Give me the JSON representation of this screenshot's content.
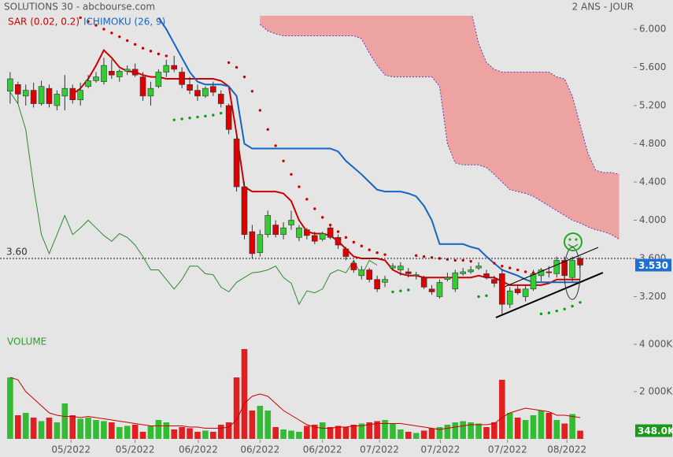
{
  "header": {
    "title": "SOLUTIONS 30 - abcbourse.com",
    "period": "2 ANS - JOUR"
  },
  "chart_data": [
    {
      "type": "candlestick",
      "up_color": "#33cc33",
      "down_color": "#dd0000",
      "xlim": [
        -1.3,
        79.85
      ],
      "ylim": [
        2.8,
        6.14
      ],
      "yticks": [
        {
          "value": 6.0,
          "label": "6.000"
        },
        {
          "value": 5.6,
          "label": "5.600"
        },
        {
          "value": 5.2,
          "label": "5.200"
        },
        {
          "value": 4.8,
          "label": "4.800"
        },
        {
          "value": 4.4,
          "label": "4.400"
        },
        {
          "value": 4.0,
          "label": "4.000"
        },
        {
          "value": 3.6,
          "label": "3.600"
        },
        {
          "value": 3.2,
          "label": "3.200"
        }
      ],
      "open": [
        5.35,
        5.42,
        5.3,
        5.36,
        5.22,
        5.38,
        5.2,
        5.3,
        5.38,
        5.26,
        5.4,
        5.46,
        5.45,
        5.56,
        5.5,
        5.56,
        5.58,
        5.5,
        5.3,
        5.4,
        5.55,
        5.62,
        5.55,
        5.42,
        5.36,
        5.3,
        5.4,
        5.32,
        5.2,
        4.85,
        4.35,
        3.88,
        3.66,
        3.85,
        3.95,
        3.85,
        3.95,
        3.82,
        3.9,
        3.84,
        3.8,
        3.92,
        3.82,
        3.7,
        3.55,
        3.42,
        3.48,
        3.38,
        3.35,
        3.5,
        3.48,
        3.46,
        3.42,
        3.4,
        3.28,
        3.2,
        3.38,
        3.28,
        3.44,
        3.46,
        3.5,
        3.44,
        3.38,
        3.44,
        3.12,
        3.28,
        3.2,
        3.28,
        3.42,
        3.46,
        3.44,
        3.58,
        3.4,
        3.6
      ],
      "high": [
        5.55,
        5.45,
        5.42,
        5.44,
        5.46,
        5.42,
        5.36,
        5.52,
        5.42,
        5.44,
        5.52,
        5.55,
        5.7,
        5.68,
        5.58,
        5.62,
        5.64,
        5.55,
        5.45,
        5.58,
        5.68,
        5.72,
        5.6,
        5.5,
        5.42,
        5.4,
        5.45,
        5.36,
        5.22,
        4.88,
        4.4,
        3.95,
        3.9,
        4.1,
        4.0,
        3.98,
        4.1,
        3.95,
        3.92,
        3.88,
        3.88,
        3.95,
        3.85,
        3.72,
        3.58,
        3.52,
        3.5,
        3.42,
        3.42,
        3.55,
        3.56,
        3.5,
        3.46,
        3.42,
        3.32,
        3.38,
        3.45,
        3.48,
        3.5,
        3.52,
        3.56,
        3.48,
        3.42,
        3.48,
        3.3,
        3.32,
        3.32,
        3.48,
        3.5,
        3.52,
        3.62,
        3.62,
        3.62,
        3.62
      ],
      "low": [
        5.22,
        5.22,
        5.2,
        5.18,
        5.2,
        5.18,
        5.15,
        5.15,
        5.22,
        5.2,
        5.38,
        5.44,
        5.42,
        5.48,
        5.45,
        5.52,
        5.5,
        5.25,
        5.2,
        5.38,
        5.5,
        5.55,
        5.38,
        5.32,
        5.25,
        5.28,
        5.3,
        5.18,
        4.9,
        4.3,
        3.8,
        3.6,
        3.62,
        3.82,
        3.82,
        3.8,
        3.9,
        3.78,
        3.8,
        3.75,
        3.78,
        3.8,
        3.7,
        3.58,
        3.45,
        3.38,
        3.35,
        3.25,
        3.3,
        3.48,
        3.42,
        3.4,
        3.38,
        3.28,
        3.22,
        3.18,
        3.36,
        3.25,
        3.42,
        3.44,
        3.48,
        3.38,
        3.3,
        3.0,
        3.08,
        3.22,
        3.15,
        3.26,
        3.36,
        3.4,
        3.4,
        3.38,
        3.36,
        3.5
      ],
      "close": [
        5.48,
        5.32,
        5.36,
        5.22,
        5.4,
        5.22,
        5.32,
        5.38,
        5.26,
        5.36,
        5.46,
        5.5,
        5.62,
        5.52,
        5.56,
        5.58,
        5.52,
        5.3,
        5.38,
        5.55,
        5.62,
        5.58,
        5.42,
        5.36,
        5.3,
        5.38,
        5.34,
        5.22,
        4.95,
        4.35,
        3.85,
        3.65,
        3.85,
        4.05,
        3.85,
        3.92,
        4.0,
        3.92,
        3.84,
        3.78,
        3.86,
        3.82,
        3.74,
        3.62,
        3.48,
        3.48,
        3.38,
        3.28,
        3.38,
        3.52,
        3.52,
        3.44,
        3.43,
        3.3,
        3.25,
        3.35,
        3.4,
        3.45,
        3.46,
        3.48,
        3.52,
        3.4,
        3.34,
        3.12,
        3.26,
        3.24,
        3.28,
        3.44,
        3.48,
        3.45,
        3.58,
        3.42,
        3.58,
        3.53
      ],
      "reference_line": {
        "value": 3.6,
        "label": "3.60"
      },
      "last_value": {
        "value": 3.53,
        "label": "3.530",
        "color": "#1f6fd1"
      },
      "indicators": [
        {
          "name": "SAR (0.02, 0.2)",
          "color": "#cc0000",
          "below_color": "#119911",
          "values": [
            null,
            null,
            null,
            null,
            null,
            null,
            null,
            null,
            null,
            6.12,
            6.08,
            6.04,
            6.0,
            5.96,
            5.92,
            5.88,
            5.84,
            5.8,
            5.77,
            5.74,
            5.72,
            5.05,
            5.06,
            5.07,
            5.08,
            5.09,
            5.1,
            5.12,
            5.65,
            5.6,
            5.5,
            5.35,
            5.15,
            4.95,
            4.78,
            4.62,
            4.48,
            4.35,
            4.22,
            4.12,
            4.03,
            3.95,
            3.88,
            3.82,
            3.77,
            3.73,
            3.69,
            3.66,
            3.64,
            3.25,
            3.26,
            3.27,
            3.63,
            3.62,
            3.61,
            3.6,
            3.59,
            3.58,
            3.58,
            3.57,
            3.2,
            3.21,
            3.55,
            3.52,
            3.5,
            3.48,
            3.46,
            3.45,
            3.02,
            3.03,
            3.05,
            3.07,
            3.1,
            3.14
          ]
        },
        {
          "name": "ICHIMOKU (26, 9)",
          "color": "#1565c0",
          "lines": [
            {
              "color": "#cc0000",
              "width": 2,
              "values": [
                null,
                null,
                null,
                null,
                null,
                null,
                null,
                null,
                5.32,
                5.38,
                5.48,
                5.62,
                5.78,
                5.7,
                5.6,
                5.56,
                5.55,
                5.52,
                5.5,
                5.5,
                5.48,
                5.48,
                5.48,
                5.48,
                5.48,
                5.48,
                5.48,
                5.46,
                5.4,
                4.9,
                4.35,
                4.3,
                4.3,
                4.3,
                4.3,
                4.28,
                4.2,
                4.0,
                3.88,
                3.86,
                3.86,
                3.84,
                3.78,
                3.7,
                3.62,
                3.6,
                3.6,
                3.6,
                3.58,
                3.48,
                3.44,
                3.42,
                3.42,
                3.4,
                3.4,
                3.4,
                3.4,
                3.4,
                3.4,
                3.4,
                3.42,
                3.4,
                3.4,
                3.36,
                3.32,
                3.32,
                3.32,
                3.32,
                3.32,
                3.34,
                3.38,
                3.38,
                3.38,
                3.38
              ]
            },
            {
              "color": "#1565c0",
              "width": 2,
              "values": [
                null,
                null,
                null,
                null,
                null,
                null,
                null,
                null,
                null,
                null,
                null,
                null,
                null,
                null,
                null,
                null,
                null,
                null,
                null,
                6.12,
                6.0,
                5.85,
                5.7,
                5.55,
                5.45,
                5.42,
                5.42,
                5.42,
                5.4,
                5.3,
                4.8,
                4.75,
                4.75,
                4.75,
                4.75,
                4.75,
                4.75,
                4.75,
                4.75,
                4.75,
                4.75,
                4.75,
                4.72,
                4.62,
                4.55,
                4.48,
                4.4,
                4.32,
                4.3,
                4.3,
                4.3,
                4.28,
                4.25,
                4.15,
                4.0,
                3.75,
                3.75,
                3.75,
                3.75,
                3.72,
                3.7,
                3.62,
                3.55,
                3.48,
                3.45,
                3.42,
                3.38,
                3.35,
                3.35,
                3.35,
                3.35,
                3.35,
                3.35,
                3.35
              ]
            },
            {
              "color": "#2e8b2e",
              "width": 1,
              "values": [
                5.34,
                5.22,
                4.95,
                4.35,
                3.85,
                3.65,
                3.85,
                4.05,
                3.85,
                3.92,
                4.0,
                3.92,
                3.84,
                3.78,
                3.86,
                3.82,
                3.74,
                3.62,
                3.48,
                3.48,
                3.38,
                3.28,
                3.38,
                3.52,
                3.52,
                3.44,
                3.43,
                3.3,
                3.25,
                3.35,
                3.4,
                3.45,
                3.46,
                3.48,
                3.52,
                3.4,
                3.34,
                3.12,
                3.26,
                3.24,
                3.28,
                3.44,
                3.48,
                3.45,
                3.58,
                3.42,
                3.58,
                3.53,
                null,
                null,
                null,
                null,
                null,
                null,
                null,
                null,
                null,
                null,
                null,
                null,
                null,
                null,
                null,
                null,
                null,
                null,
                null,
                null,
                null,
                null,
                null,
                null,
                null,
                null
              ]
            }
          ],
          "cloud": {
            "fill": "#eea3a3",
            "edge_color": "#5b3fb5",
            "x": [
              32,
              33,
              34,
              35,
              36,
              37,
              38,
              39,
              40,
              41,
              42,
              43,
              44,
              45,
              46,
              47,
              48,
              49,
              50,
              51,
              52,
              53,
              54,
              55,
              56,
              57,
              58,
              59,
              60,
              61,
              62,
              63,
              64,
              65,
              66,
              67,
              68,
              69,
              70,
              71,
              72,
              73,
              74,
              75,
              76,
              77,
              78
            ],
            "span_a": [
              6.2,
              6.2,
              6.2,
              6.2,
              6.2,
              6.2,
              6.2,
              6.2,
              6.2,
              6.2,
              6.2,
              6.2,
              6.2,
              6.2,
              6.2,
              6.2,
              6.2,
              6.2,
              6.2,
              6.2,
              6.2,
              6.2,
              6.2,
              6.2,
              6.2,
              6.2,
              6.2,
              6.2,
              5.85,
              5.65,
              5.58,
              5.55,
              5.55,
              5.55,
              5.55,
              5.55,
              5.55,
              5.55,
              5.5,
              5.48,
              5.3,
              5.0,
              4.7,
              4.52,
              4.5,
              4.5,
              4.48
            ],
            "span_b": [
              6.05,
              5.98,
              5.95,
              5.93,
              5.93,
              5.93,
              5.93,
              5.93,
              5.93,
              5.93,
              5.93,
              5.93,
              5.93,
              5.9,
              5.75,
              5.62,
              5.52,
              5.5,
              5.5,
              5.5,
              5.5,
              5.5,
              5.5,
              5.4,
              4.8,
              4.6,
              4.58,
              4.58,
              4.58,
              4.55,
              4.48,
              4.4,
              4.32,
              4.3,
              4.28,
              4.25,
              4.2,
              4.15,
              4.1,
              4.05,
              4.0,
              3.97,
              3.93,
              3.9,
              3.88,
              3.85,
              3.8
            ]
          }
        }
      ]
    },
    {
      "type": "bar",
      "title": "VOLUME",
      "up_color": "#33bb33",
      "down_color": "#e02020",
      "xlim": [
        -1.3,
        79.85
      ],
      "ylim": [
        0,
        4400
      ],
      "yticks": [
        {
          "value": 4000,
          "label": "4 000K"
        },
        {
          "value": 2000,
          "label": "2 000K"
        }
      ],
      "xticks": [
        {
          "value": 7.8,
          "label": "05/2022"
        },
        {
          "value": 16,
          "label": "05/2022"
        },
        {
          "value": 24.1,
          "label": "06/2022"
        },
        {
          "value": 32,
          "label": "06/2022"
        },
        {
          "value": 40,
          "label": "06/2022"
        },
        {
          "value": 47.3,
          "label": "07/2022"
        },
        {
          "value": 55.1,
          "label": "07/2022"
        },
        {
          "value": 63.7,
          "label": "07/2022"
        },
        {
          "value": 71.3,
          "label": "08/2022"
        }
      ],
      "values": [
        2600,
        1000,
        1100,
        900,
        750,
        900,
        700,
        1500,
        1000,
        850,
        900,
        800,
        750,
        700,
        500,
        550,
        600,
        300,
        550,
        800,
        700,
        400,
        500,
        450,
        300,
        350,
        300,
        600,
        700,
        2600,
        3800,
        1200,
        1400,
        1200,
        500,
        400,
        350,
        300,
        550,
        600,
        700,
        500,
        550,
        500,
        600,
        650,
        700,
        750,
        800,
        650,
        400,
        300,
        250,
        350,
        450,
        500,
        600,
        700,
        750,
        700,
        650,
        500,
        700,
        2500,
        1100,
        900,
        800,
        1000,
        1200,
        1100,
        800,
        650,
        1050,
        348
      ],
      "average": {
        "color": "#cc0000",
        "values": [
          2600,
          2500,
          2000,
          1700,
          1400,
          1100,
          1000,
          950,
          950,
          900,
          950,
          900,
          850,
          800,
          750,
          700,
          650,
          600,
          550,
          550,
          550,
          550,
          550,
          500,
          500,
          450,
          450,
          450,
          500,
          800,
          1500,
          1800,
          1900,
          1800,
          1500,
          1200,
          1000,
          800,
          600,
          500,
          450,
          450,
          500,
          500,
          550,
          550,
          600,
          650,
          650,
          650,
          650,
          600,
          550,
          500,
          450,
          400,
          450,
          500,
          550,
          600,
          600,
          600,
          650,
          900,
          1100,
          1200,
          1300,
          1250,
          1200,
          1150,
          1000,
          1000,
          950,
          900
        ]
      },
      "last_value": {
        "value": 348,
        "label": "348.0K",
        "color": "#1a9a1a"
      }
    }
  ]
}
